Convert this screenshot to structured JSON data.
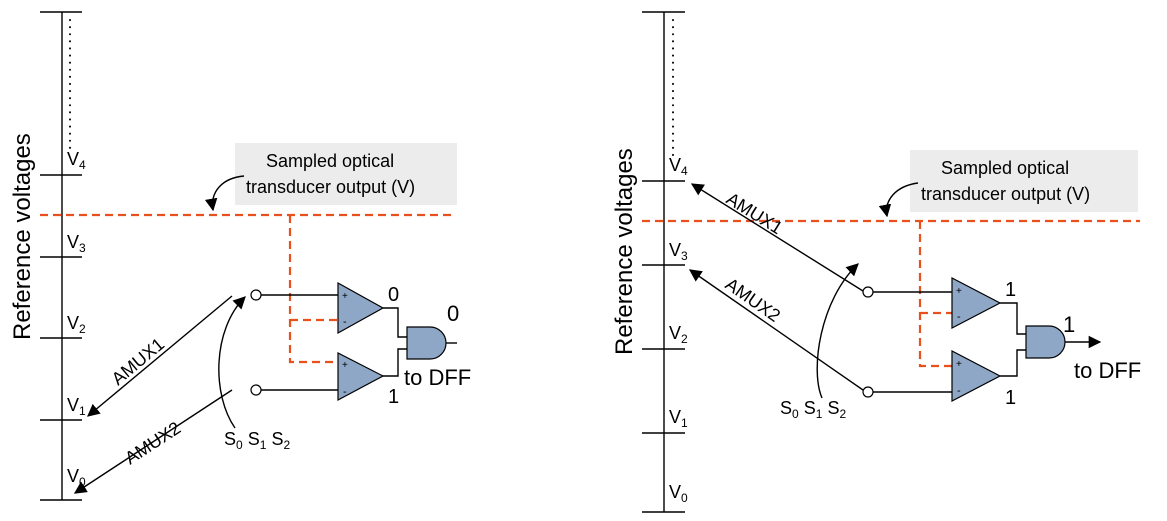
{
  "left": {
    "axis_label": "Reference voltages",
    "voltages": [
      {
        "base": "V",
        "sub": "4"
      },
      {
        "base": "V",
        "sub": "3"
      },
      {
        "base": "V",
        "sub": "2"
      },
      {
        "base": "V",
        "sub": "1"
      },
      {
        "base": "V",
        "sub": "0"
      }
    ],
    "callout_line1": "Sampled optical",
    "callout_line2": "transducer output (V)",
    "amux1": "AMUX1",
    "amux2": "AMUX2",
    "select": [
      {
        "base": "S",
        "sub": "0"
      },
      {
        "base": "S",
        "sub": "1"
      },
      {
        "base": "S",
        "sub": "2"
      }
    ],
    "comp_top_out": "0",
    "comp_bottom_out": "1",
    "gate_out": "0",
    "to_dff": "to DFF",
    "plus": "+",
    "minus": "-"
  },
  "right": {
    "axis_label": "Reference voltages",
    "voltages": [
      {
        "base": "V",
        "sub": "4"
      },
      {
        "base": "V",
        "sub": "3"
      },
      {
        "base": "V",
        "sub": "2"
      },
      {
        "base": "V",
        "sub": "1"
      },
      {
        "base": "V",
        "sub": "0"
      }
    ],
    "callout_line1": "Sampled optical",
    "callout_line2": "transducer output (V)",
    "amux1": "AMUX1",
    "amux2": "AMUX2",
    "select": [
      {
        "base": "S",
        "sub": "0"
      },
      {
        "base": "S",
        "sub": "1"
      },
      {
        "base": "S",
        "sub": "2"
      }
    ],
    "comp_top_out": "1",
    "comp_bottom_out": "1",
    "gate_out": "1",
    "to_dff": "to DFF",
    "plus": "+",
    "minus": "-"
  },
  "colors": {
    "signal_dashed": "#e8501e",
    "component_fill": "#8fa7c6",
    "callout_fill": "#ececec"
  }
}
